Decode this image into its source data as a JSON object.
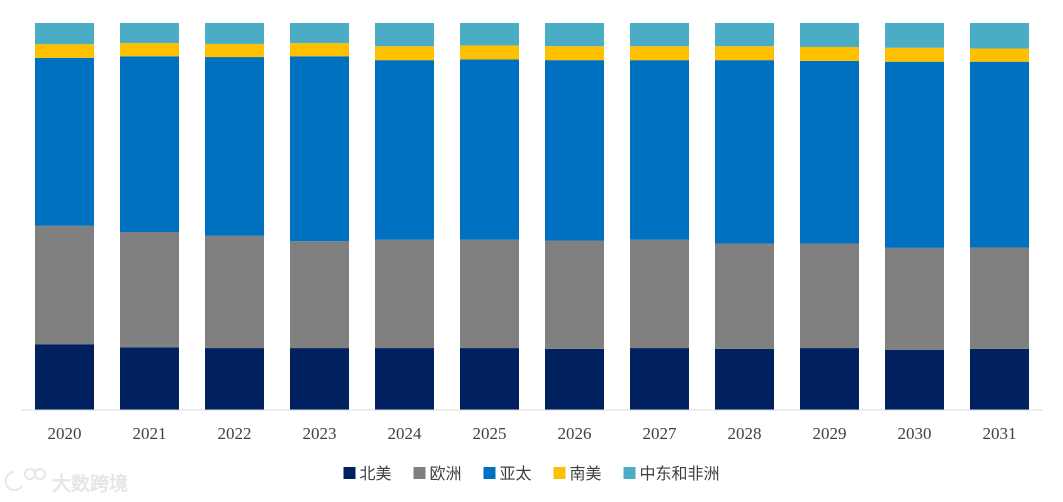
{
  "chart_data": {
    "type": "bar",
    "stacked": true,
    "normalized": true,
    "categories": [
      "2020",
      "2021",
      "2022",
      "2023",
      "2024",
      "2025",
      "2026",
      "2027",
      "2028",
      "2029",
      "2030",
      "2031"
    ],
    "series": [
      {
        "name": "北美",
        "color": "#002060",
        "values": [
          17.0,
          16.2,
          16.0,
          16.0,
          16.0,
          16.0,
          15.8,
          16.0,
          15.8,
          16.0,
          15.5,
          15.8
        ]
      },
      {
        "name": "欧洲",
        "color": "#808080",
        "values": [
          30.6,
          29.8,
          29.0,
          27.6,
          28.0,
          28.0,
          28.0,
          28.0,
          27.2,
          27.0,
          26.4,
          26.2
        ]
      },
      {
        "name": "亚太",
        "color": "#0070C0",
        "values": [
          43.4,
          45.4,
          46.2,
          47.8,
          46.4,
          46.6,
          46.6,
          46.4,
          47.4,
          47.2,
          48.1,
          48.0
        ]
      },
      {
        "name": "南美",
        "color": "#FFC000",
        "values": [
          3.5,
          3.4,
          3.4,
          3.4,
          3.6,
          3.6,
          3.6,
          3.6,
          3.6,
          3.6,
          3.6,
          3.4
        ]
      },
      {
        "name": "中东和非洲",
        "color": "#4BACC6",
        "values": [
          5.5,
          5.2,
          5.4,
          5.2,
          6.0,
          5.8,
          6.0,
          6.0,
          6.0,
          6.2,
          6.4,
          6.6
        ]
      }
    ],
    "ylim": [
      0,
      100
    ],
    "grid": false,
    "legend_position": "bottom"
  },
  "watermark": {
    "text": "大数跨境",
    "icon": "logo-icon"
  }
}
